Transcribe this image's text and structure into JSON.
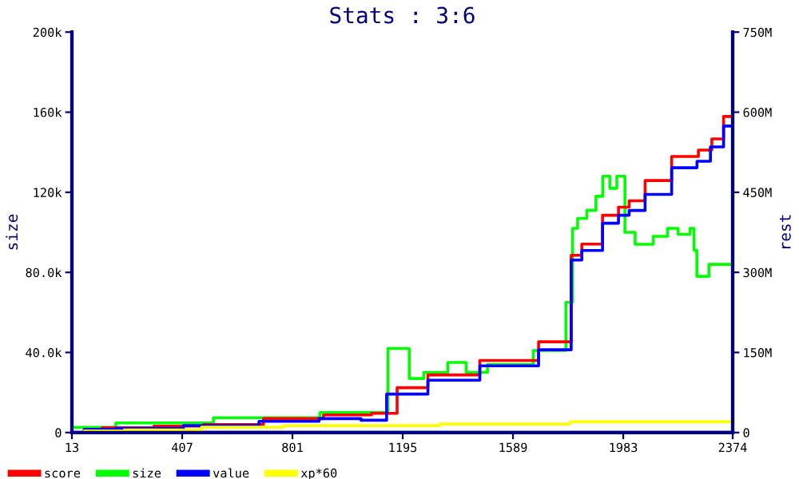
{
  "chart_data": {
    "type": "step",
    "title": "Stats : 3:6",
    "ylabel": "size",
    "y2label": "rest",
    "xlim": [
      13,
      2374
    ],
    "xticks": [
      13,
      407,
      801,
      1195,
      1589,
      1983,
      2374
    ],
    "ylim": [
      0,
      200000
    ],
    "yticks": [
      0,
      {
        "value": 40000,
        "label": "40.0k"
      },
      {
        "value": 80000,
        "label": "80.0k"
      },
      {
        "value": 120000,
        "label": "120k"
      },
      {
        "value": 160000,
        "label": "160k"
      },
      {
        "value": 200000,
        "label": "200k"
      }
    ],
    "y2lim": [
      0,
      750000000
    ],
    "y2ticks": [
      0,
      {
        "value": 150000000,
        "label": "150M"
      },
      {
        "value": 300000000,
        "label": "300M"
      },
      {
        "value": 450000000,
        "label": "450M"
      },
      {
        "value": 600000000,
        "label": "600M"
      },
      {
        "value": 750000000,
        "label": "750M"
      }
    ],
    "legend": "bottom",
    "grid": false,
    "marker": "none",
    "line_style": "solid",
    "series": [
      {
        "name": "score",
        "color": "#ff0000",
        "axis": "y2",
        "x": [
          13,
          229,
          383,
          583,
          812,
          1012,
          1155,
          1195,
          1375,
          1566,
          1795,
          1799,
          1871,
          1947,
          1985,
          2023,
          2099,
          2213,
          2290,
          2309,
          2374
        ],
        "values": [
          0,
          9000000,
          12000000,
          15000000,
          26000000,
          33000000,
          36000000,
          84000000,
          108000000,
          135000000,
          170000000,
          332000000,
          353000000,
          407000000,
          422000000,
          434000000,
          472000000,
          517000000,
          529000000,
          550000000,
          592000000
        ]
      },
      {
        "name": "size",
        "color": "#00ff00",
        "x": [
          13,
          327,
          710,
          1089,
          1195,
          1242,
          1299,
          1413,
          1430,
          1566,
          1757,
          1799,
          1805,
          1835,
          1871,
          1900,
          1920,
          1950,
          1970,
          2008,
          2043,
          2137,
          2145,
          2213,
          2230,
          2242,
          2250,
          2328,
          2374
        ],
        "values": [
          2600,
          4800,
          7400,
          10000,
          42000,
          27000,
          30000,
          35000,
          30000,
          34000,
          41000,
          65000,
          102000,
          107000,
          111000,
          118000,
          128000,
          122000,
          128000,
          100000,
          94000,
          98000,
          102000,
          99000,
          102000,
          91000,
          78000,
          84000,
          84000
        ]
      },
      {
        "name": "value",
        "color": "#0000ff",
        "axis": "y2",
        "x": [
          13,
          100,
          240,
          583,
          780,
          1012,
          1080,
          1195,
          1375,
          1566,
          1795,
          1799,
          1871,
          1947,
          1985,
          2023,
          2099,
          2213,
          2280,
          2309,
          2374
        ],
        "values": [
          0,
          6000000,
          8000000,
          13000000,
          21000000,
          26000000,
          23000000,
          72000000,
          98000000,
          125000000,
          155000000,
          323000000,
          341000000,
          392000000,
          407000000,
          416000000,
          446000000,
          496000000,
          508000000,
          535000000,
          574000000
        ]
      },
      {
        "name": "xp*60",
        "color": "#ffff00",
        "axis": "y2",
        "x": [
          13,
          100,
          300,
          653,
          888,
          1071,
          1585,
          2001,
          2374
        ],
        "values": [
          0,
          3000000,
          5000000,
          10000000,
          13000000,
          13000000,
          16000000,
          20000000,
          20000000
        ]
      }
    ]
  }
}
